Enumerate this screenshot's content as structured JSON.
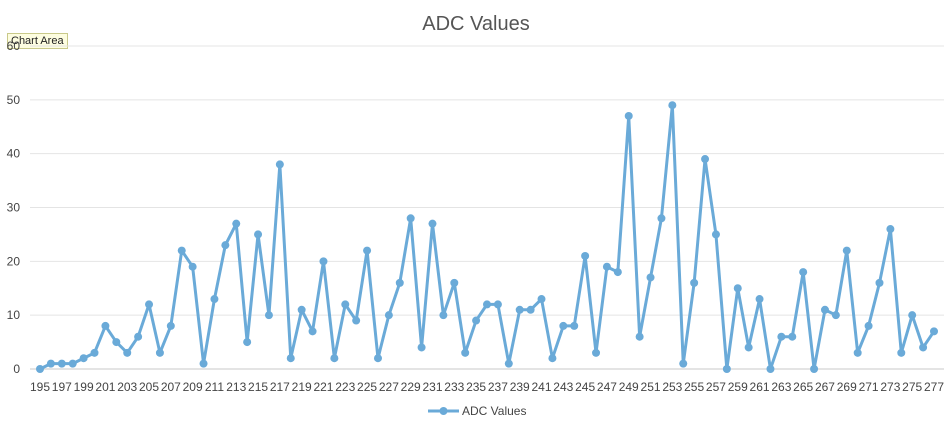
{
  "tooltip": "Chart Area",
  "chart_data": {
    "type": "line",
    "title": "ADC Values",
    "xlabel": "",
    "ylabel": "",
    "ylim": [
      0,
      60
    ],
    "yticks": [
      0,
      10,
      20,
      30,
      40,
      50,
      60
    ],
    "grid": true,
    "legend_position": "bottom",
    "color": "#6aaad8",
    "x": [
      195,
      196,
      197,
      198,
      199,
      200,
      201,
      202,
      203,
      204,
      205,
      206,
      207,
      208,
      209,
      210,
      211,
      212,
      213,
      214,
      215,
      216,
      217,
      218,
      219,
      220,
      221,
      222,
      223,
      224,
      225,
      226,
      227,
      228,
      229,
      230,
      231,
      232,
      233,
      234,
      235,
      236,
      237,
      238,
      239,
      240,
      241,
      242,
      243,
      244,
      245,
      246,
      247,
      248,
      249,
      250,
      251,
      252,
      253,
      254,
      255,
      256,
      257,
      258,
      259,
      260,
      261,
      262,
      263,
      264,
      265,
      266,
      267,
      268,
      269,
      270,
      271,
      272,
      273,
      274,
      275,
      276,
      277
    ],
    "xtick_labels": [
      "195",
      "197",
      "199",
      "201",
      "203",
      "205",
      "207",
      "209",
      "211",
      "213",
      "215",
      "217",
      "219",
      "221",
      "223",
      "225",
      "227",
      "229",
      "231",
      "233",
      "235",
      "237",
      "239",
      "241",
      "243",
      "245",
      "247",
      "249",
      "251",
      "253",
      "255",
      "257",
      "259",
      "261",
      "263",
      "265",
      "267",
      "269",
      "271",
      "273",
      "275",
      "277"
    ],
    "series": [
      {
        "name": "ADC Values",
        "values": [
          0,
          1,
          1,
          1,
          2,
          3,
          8,
          5,
          3,
          6,
          12,
          3,
          8,
          22,
          19,
          1,
          13,
          23,
          27,
          5,
          25,
          10,
          38,
          2,
          11,
          7,
          20,
          2,
          12,
          9,
          22,
          2,
          10,
          16,
          28,
          4,
          27,
          10,
          16,
          3,
          9,
          12,
          12,
          1,
          11,
          11,
          13,
          2,
          8,
          8,
          21,
          3,
          19,
          18,
          47,
          6,
          17,
          28,
          49,
          1,
          16,
          39,
          25,
          0,
          15,
          4,
          13,
          0,
          6,
          6,
          18,
          0,
          11,
          10,
          22,
          3,
          8,
          16,
          26,
          3,
          10,
          4,
          7
        ]
      }
    ]
  }
}
